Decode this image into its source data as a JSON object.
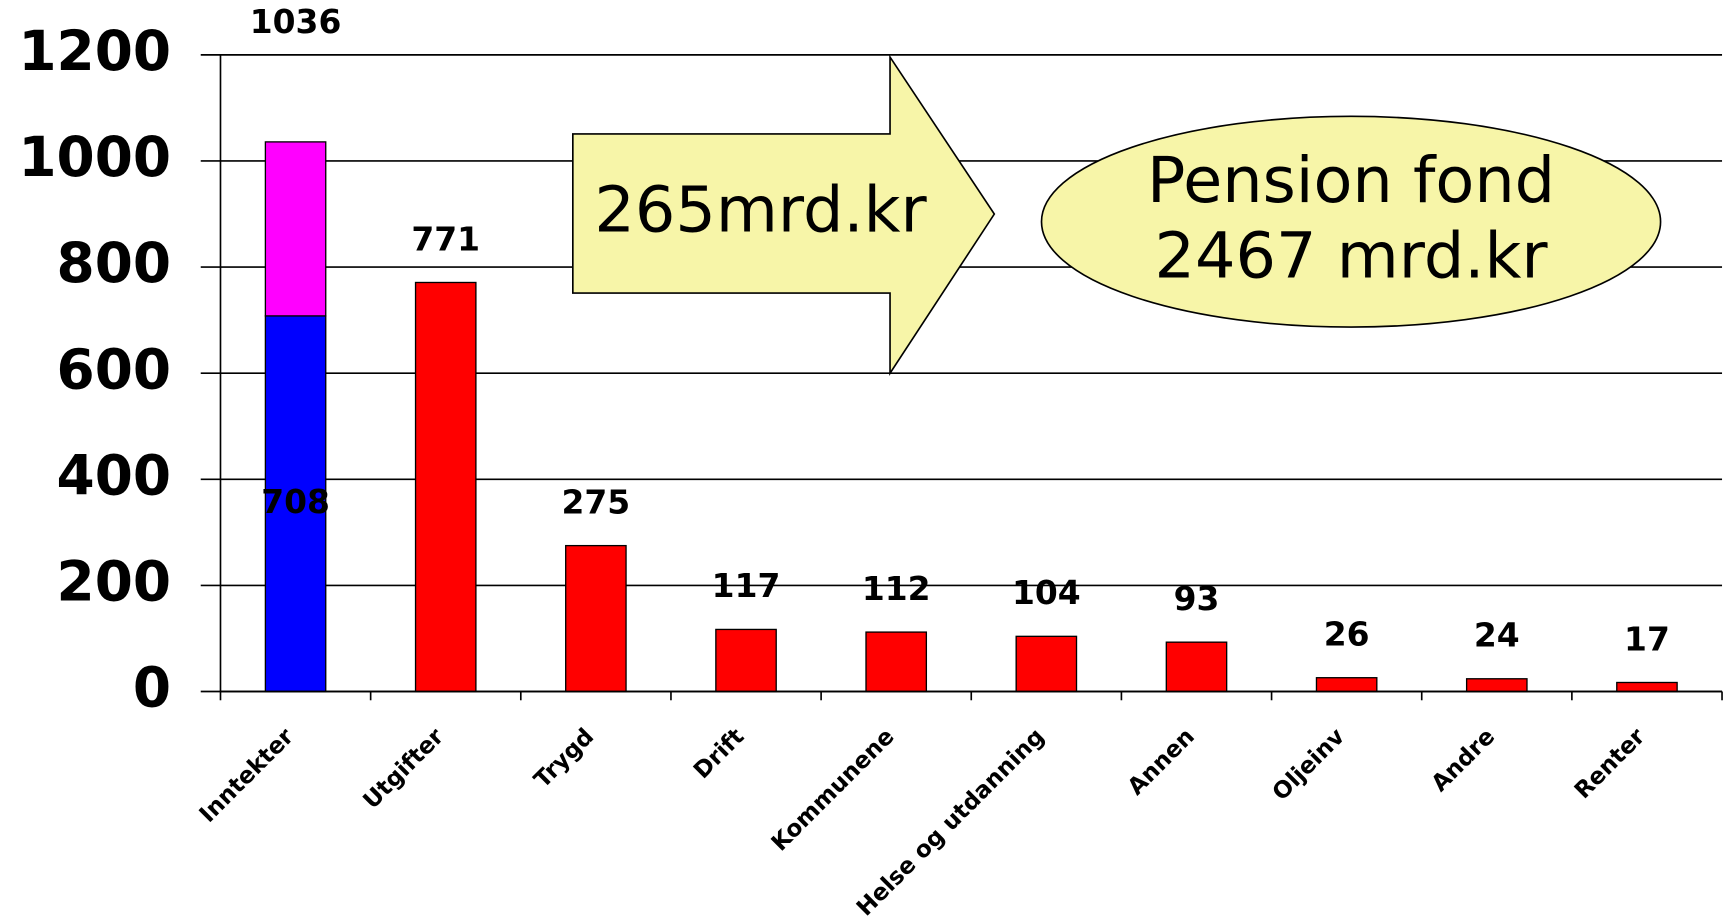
{
  "chart_data": {
    "type": "stacked_bar",
    "categories": [
      "Inntekter",
      "Utgifter",
      "Trygd",
      "Drift",
      "Kommunene",
      "Helse og utdanning",
      "Annen",
      "Oljeinv",
      "Andre",
      "Renter"
    ],
    "series": [
      {
        "color": "#0000ff",
        "label_position": "center",
        "values": [
          708,
          null,
          null,
          null,
          null,
          null,
          null,
          null,
          null,
          null
        ]
      },
      {
        "color": "#ff00ff",
        "label_position": "none",
        "values": [
          328,
          null,
          null,
          null,
          null,
          null,
          null,
          null,
          null,
          null
        ]
      },
      {
        "color": "#ff0000",
        "label_position": "above",
        "values": [
          null,
          771,
          275,
          117,
          112,
          104,
          93,
          26,
          24,
          17
        ]
      }
    ],
    "totals": [
      1036,
      null,
      null,
      null,
      null,
      null,
      null,
      null,
      null,
      null
    ],
    "ylim": [
      0,
      1200
    ],
    "yticks": [
      0,
      200,
      400,
      600,
      800,
      1000,
      1200
    ],
    "grid": true,
    "annotations": {
      "arrow": "265mrd.kr",
      "ellipse": [
        "Pension fond",
        "2467 mrd.kr"
      ]
    }
  }
}
